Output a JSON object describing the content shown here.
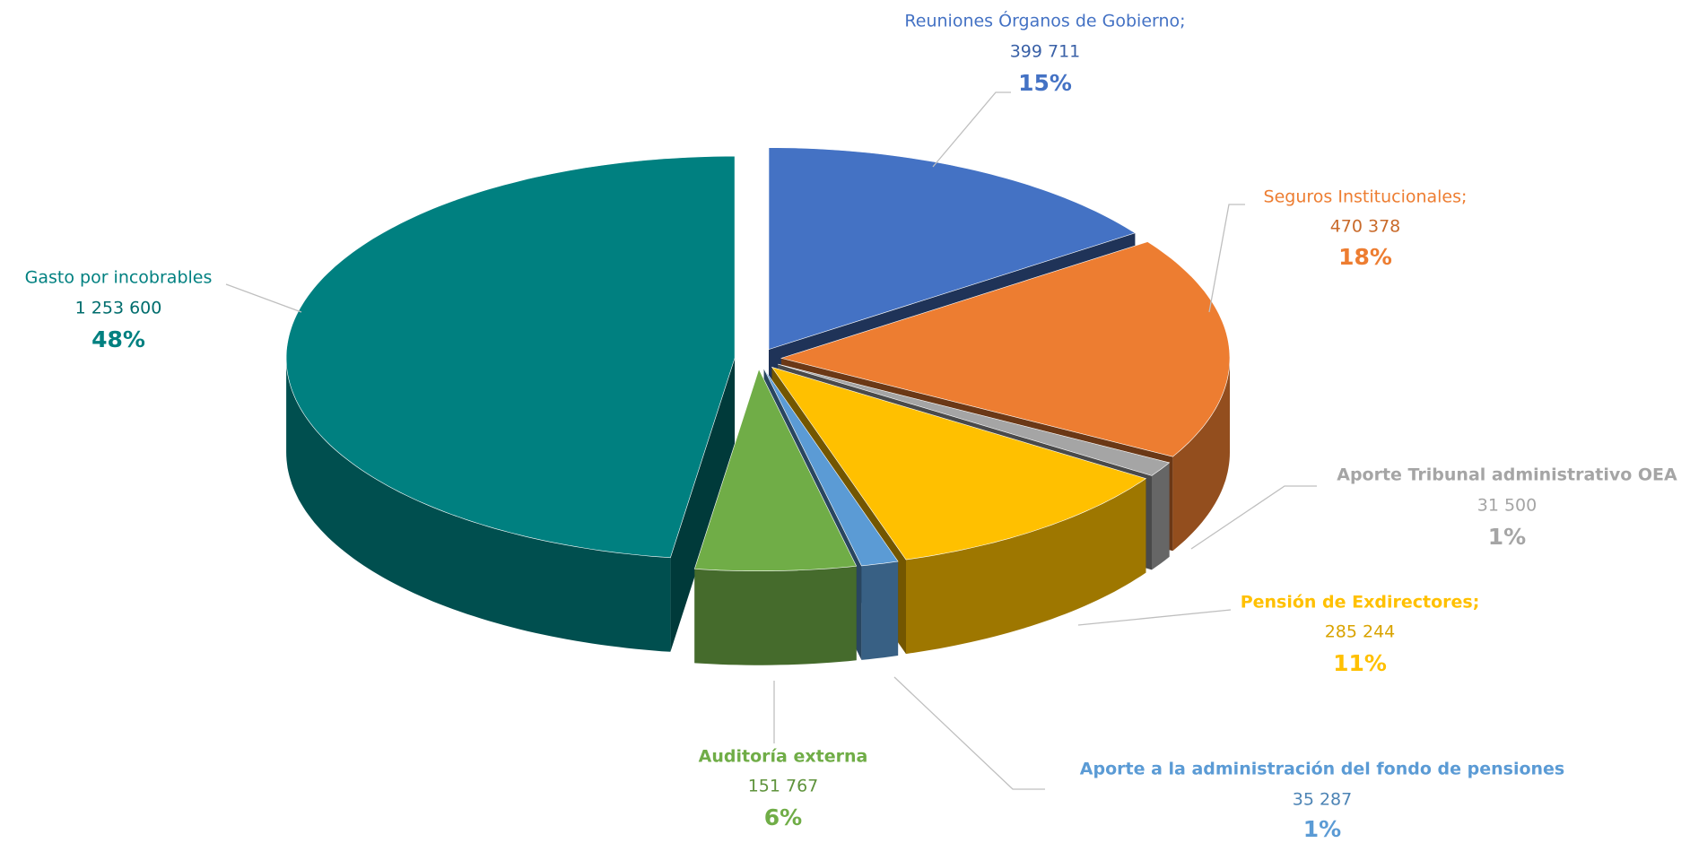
{
  "chart_data": {
    "type": "pie3d",
    "categories": [
      "Reuniones Órganos de Gobierno;",
      "Seguros Institucionales;",
      "Aporte Tribunal administrativo OEA",
      "Pensión de Exdirectores;",
      "Aporte a la administración del fondo de pensiones",
      "Auditoría externa",
      "Gasto por incobrables"
    ],
    "values": [
      399711,
      470378,
      31500,
      285244,
      35287,
      151767,
      1253600
    ],
    "value_labels": [
      "399 711",
      "470 378",
      "31 500",
      "285 244",
      "35 287",
      "151 767",
      "1 253 600"
    ],
    "percentages": [
      15,
      18,
      1,
      11,
      1,
      6,
      48
    ],
    "percentage_labels": [
      "15%",
      "18%",
      "1%",
      "11%",
      "1%",
      "6%",
      "48%"
    ],
    "colors": [
      "#4472c4",
      "#ed7d31",
      "#a5a5a5",
      "#ffc000",
      "#5b9bd5",
      "#70ad47",
      "#008080"
    ]
  }
}
